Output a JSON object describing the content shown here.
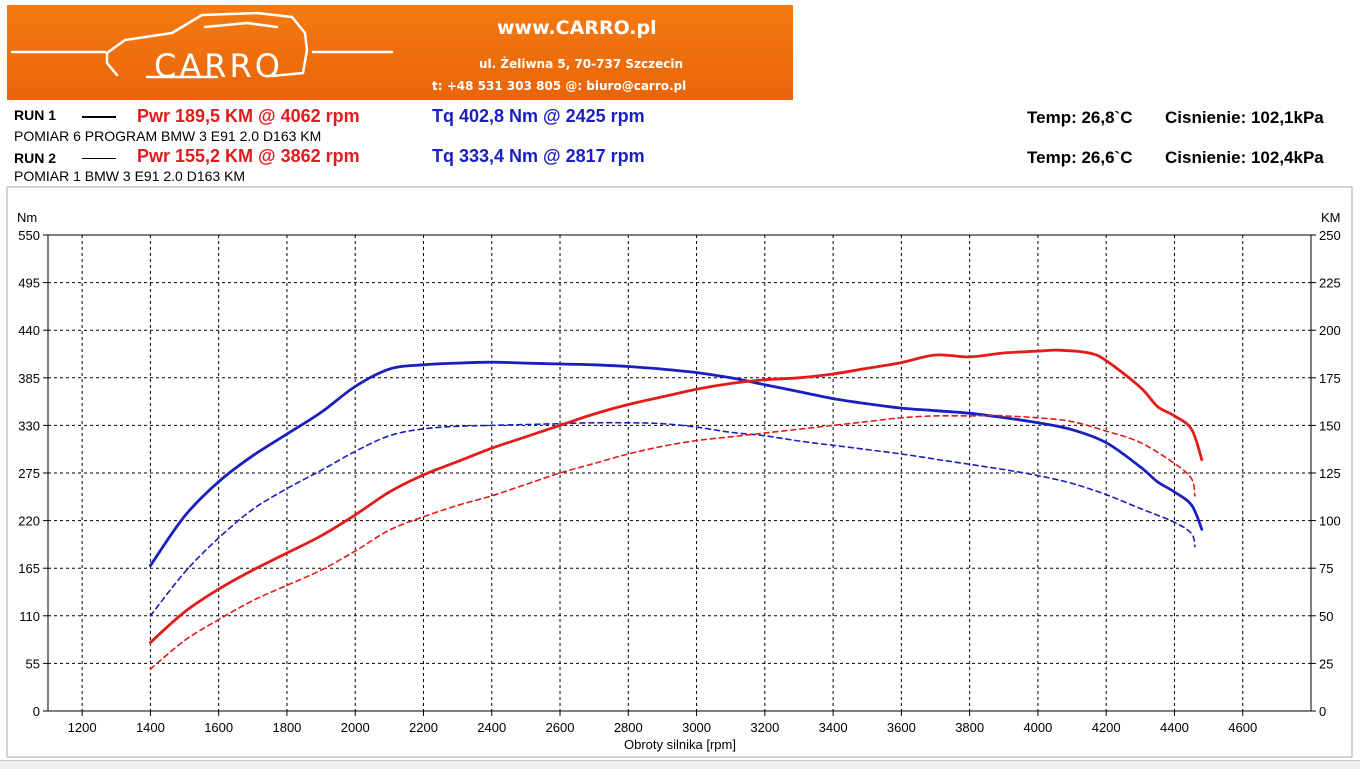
{
  "banner": {
    "logo_text": "CARRO",
    "website": "www.CARRO.pl",
    "address": "ul. Żeliwna 5, 70-737 Szczecin",
    "contact": "t: +48 531 303 805   @: biuro@carro.pl"
  },
  "runs": [
    {
      "label": "RUN 1",
      "pwr": "Pwr  189,5 KM @ 4062 rpm",
      "tq": "Tq 402,8 Nm @ 2425 rpm",
      "temp": "Temp: 26,8`C",
      "pressure": "Cisnienie: 102,1kPa",
      "description": "POMIAR 6 PROGRAM BMW 3 E91 2.0 D163 KM",
      "line_style": "solid"
    },
    {
      "label": "RUN 2",
      "pwr": "Pwr  155,2 KM @ 3862 rpm",
      "tq": "Tq 333,4 Nm @ 2817 rpm",
      "temp": "Temp: 26,6`C",
      "pressure": "Cisnienie: 102,4kPa",
      "description": "POMIAR 1 BMW 3 E91 2.0 D163 KM",
      "line_style": "dashed"
    }
  ],
  "colors": {
    "power": "#e21b1b",
    "torque": "#1a1fbf"
  },
  "chart_data": {
    "type": "line",
    "xlabel": "Obroty silnika [rpm]",
    "ylabel_left": "Nm",
    "ylabel_right": "KM",
    "xlim": [
      1100,
      4800
    ],
    "ylim_left": [
      0,
      550
    ],
    "ylim_right": [
      0,
      250
    ],
    "x_ticks": [
      1200,
      1400,
      1600,
      1800,
      2000,
      2200,
      2400,
      2600,
      2800,
      3000,
      3200,
      3400,
      3600,
      3800,
      4000,
      4200,
      4400,
      4600
    ],
    "y_ticks_left": [
      0,
      55,
      110,
      165,
      220,
      275,
      330,
      385,
      440,
      495,
      550
    ],
    "y_ticks_right": [
      0,
      25,
      50,
      75,
      100,
      125,
      150,
      175,
      200,
      225,
      250
    ],
    "grid": true,
    "series": [
      {
        "name": "RUN 1 Tq",
        "axis": "left",
        "style": "solid",
        "color": "#1a1fbf",
        "x": [
          1400,
          1500,
          1600,
          1700,
          1800,
          1900,
          2000,
          2100,
          2200,
          2300,
          2400,
          2500,
          2600,
          2700,
          2800,
          2900,
          3000,
          3100,
          3200,
          3300,
          3400,
          3500,
          3600,
          3700,
          3800,
          3900,
          4000,
          4100,
          4200,
          4300,
          4350,
          4400,
          4450,
          4480
        ],
        "y": [
          168,
          225,
          265,
          295,
          320,
          345,
          375,
          395,
          400,
          402,
          403,
          402,
          401,
          400,
          398,
          395,
          391,
          385,
          377,
          369,
          361,
          355,
          350,
          347,
          344,
          339,
          333,
          325,
          310,
          282,
          265,
          253,
          238,
          210
        ]
      },
      {
        "name": "RUN 2 Tq",
        "axis": "left",
        "style": "dashed",
        "color": "#1a1fbf",
        "x": [
          1400,
          1500,
          1600,
          1700,
          1800,
          1900,
          2000,
          2100,
          2200,
          2300,
          2400,
          2500,
          2600,
          2700,
          2800,
          2900,
          3000,
          3100,
          3200,
          3300,
          3400,
          3500,
          3600,
          3700,
          3800,
          3900,
          4000,
          4100,
          4200,
          4300,
          4400,
          4450,
          4460
        ],
        "y": [
          110,
          160,
          200,
          233,
          257,
          278,
          300,
          318,
          326,
          329,
          330,
          331,
          332,
          333,
          333,
          332,
          328,
          322,
          318,
          312,
          307,
          302,
          297,
          291,
          285,
          279,
          272,
          263,
          250,
          234,
          218,
          205,
          190
        ]
      },
      {
        "name": "RUN 1 Pwr",
        "axis": "right",
        "style": "solid",
        "color": "#e21b1b",
        "x": [
          1400,
          1500,
          1600,
          1700,
          1800,
          1900,
          2000,
          2100,
          2200,
          2300,
          2400,
          2500,
          2600,
          2700,
          2800,
          2900,
          3000,
          3100,
          3200,
          3300,
          3400,
          3500,
          3600,
          3700,
          3800,
          3900,
          4000,
          4062,
          4150,
          4200,
          4300,
          4350,
          4400,
          4450,
          4480
        ],
        "y": [
          36,
          52,
          64,
          74,
          83,
          92,
          103,
          115,
          124,
          131,
          138,
          144,
          150,
          156,
          161,
          165,
          169,
          172,
          174,
          175,
          177,
          180,
          183,
          187,
          186,
          188,
          189,
          189.5,
          188,
          184,
          170,
          160,
          155,
          148,
          132
        ]
      },
      {
        "name": "RUN 2 Pwr",
        "axis": "right",
        "style": "dashed",
        "color": "#e21b1b",
        "x": [
          1400,
          1500,
          1600,
          1700,
          1800,
          1900,
          2000,
          2100,
          2200,
          2300,
          2400,
          2500,
          2600,
          2700,
          2800,
          2900,
          3000,
          3100,
          3200,
          3300,
          3400,
          3500,
          3600,
          3700,
          3800,
          3862,
          3900,
          4000,
          4100,
          4200,
          4300,
          4400,
          4450,
          4460
        ],
        "y": [
          22,
          37,
          48,
          58,
          66,
          74,
          84,
          95,
          102,
          108,
          113,
          119,
          125,
          130,
          135,
          139,
          142,
          144,
          146,
          148,
          150,
          152,
          154,
          155,
          155,
          155.2,
          155,
          154,
          152,
          147,
          141,
          130,
          122,
          113
        ]
      }
    ]
  }
}
